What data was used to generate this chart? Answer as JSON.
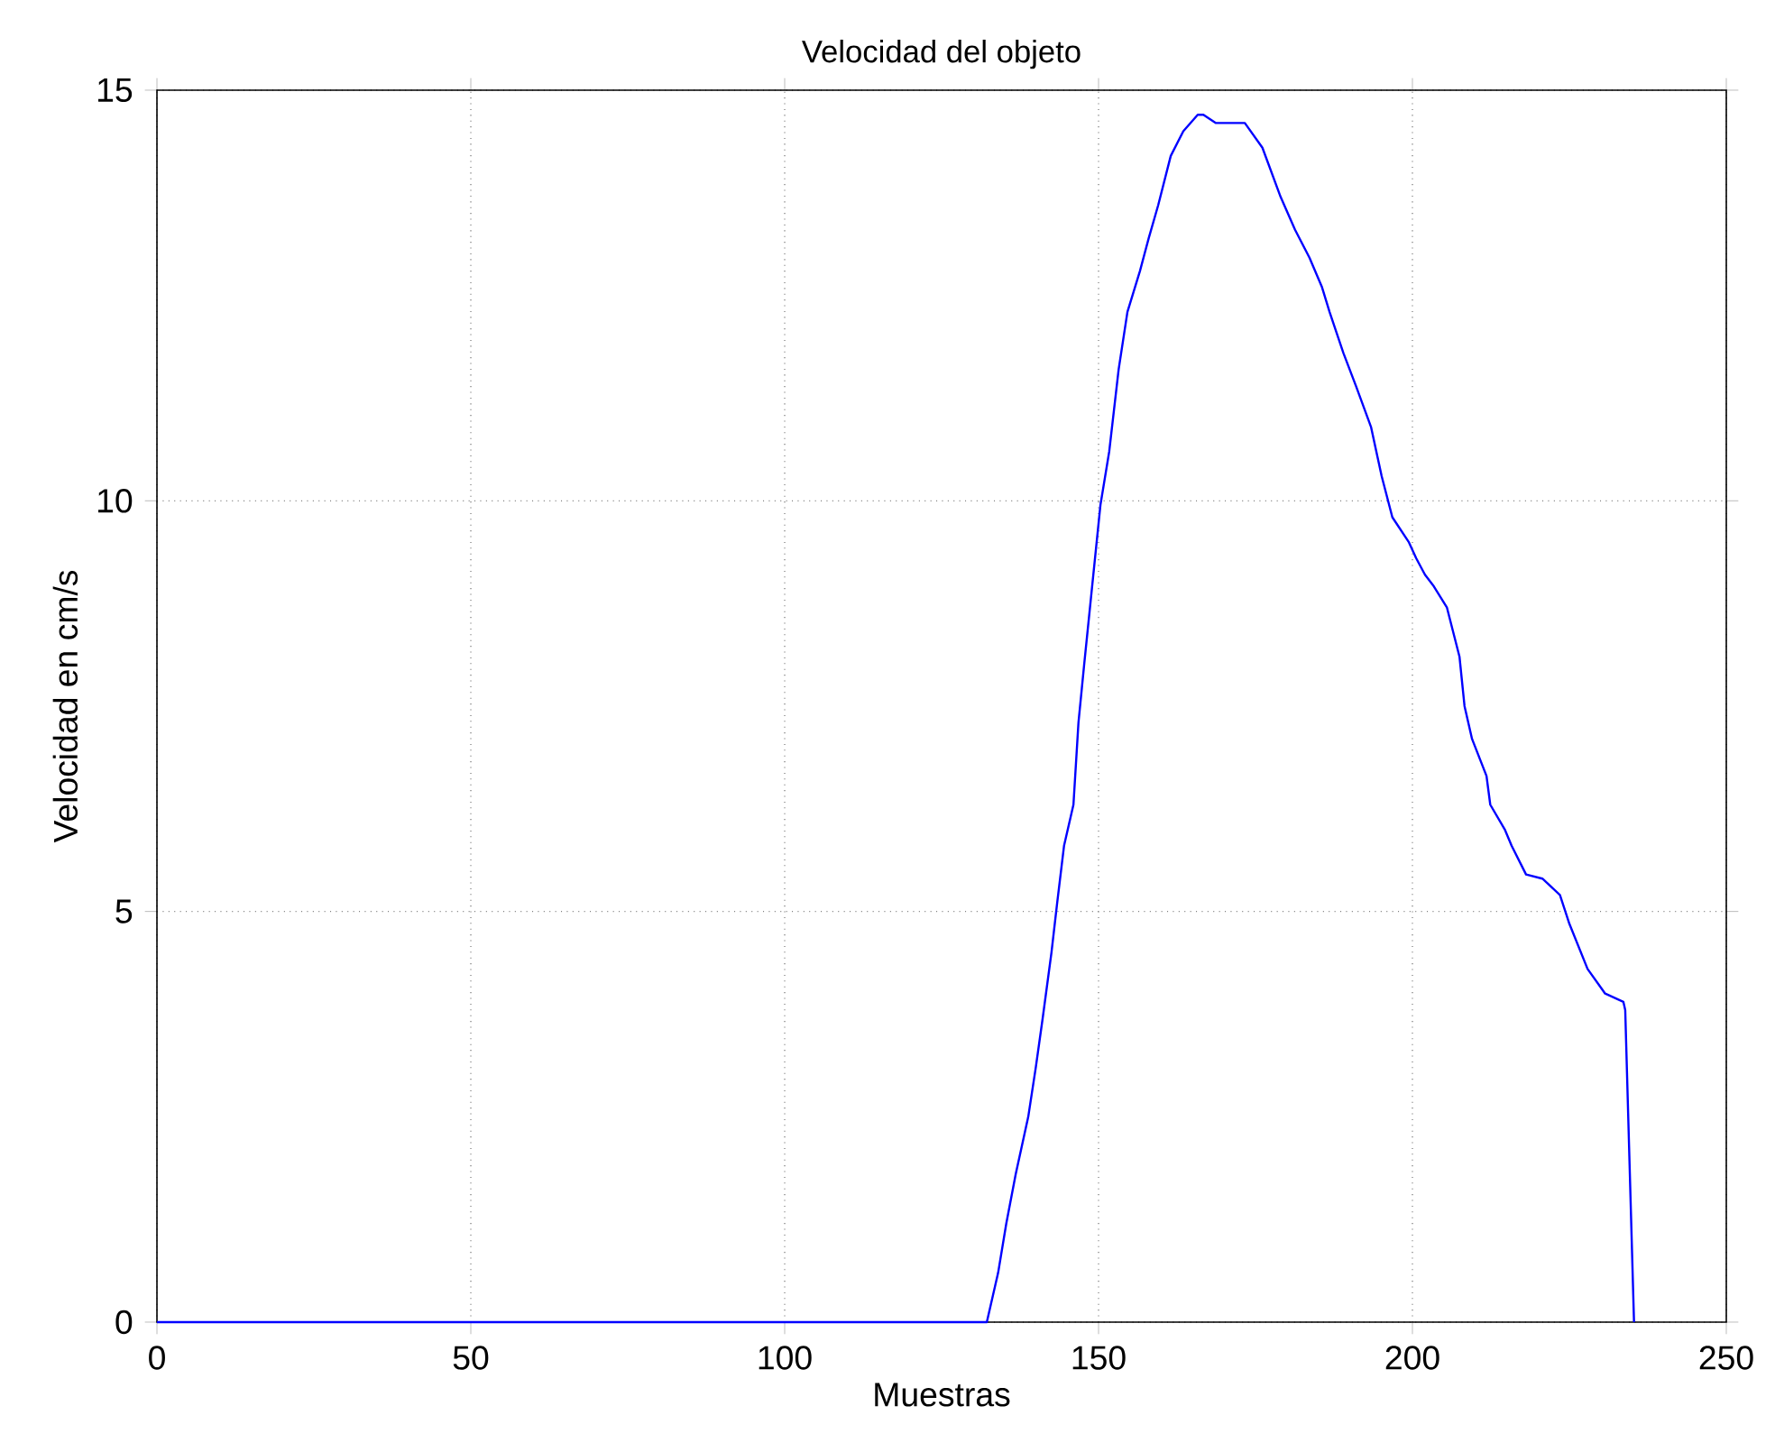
{
  "chart_data": {
    "type": "line",
    "title": "Velocidad del objeto",
    "xlabel": "Muestras",
    "ylabel": "Velocidad en cm/s",
    "xlim": [
      0,
      250
    ],
    "ylim": [
      0,
      15
    ],
    "xticks": [
      0,
      50,
      100,
      150,
      200,
      250
    ],
    "yticks": [
      0,
      5,
      10,
      15
    ],
    "grid": true,
    "series": [
      {
        "color": "#0000ff",
        "x": [
          0,
          132.2,
          134,
          135.3,
          136.8,
          138.8,
          140,
          141.1,
          142.5,
          143.4,
          144.5,
          146,
          146.8,
          147.7,
          148.9,
          150.3,
          151.7,
          153.2,
          154.6,
          156.6,
          158,
          159.5,
          161.5,
          163.5,
          165.8,
          166.7,
          168.7,
          173.3,
          176.1,
          179,
          181.3,
          183.6,
          185.6,
          186.8,
          189,
          191,
          193.4,
          195.1,
          196.8,
          199.4,
          200.6,
          202,
          203.4,
          205.5,
          207.5,
          208.3,
          209.5,
          211.8,
          212.4,
          214.7,
          215.8,
          218.1,
          220.7,
          223.5,
          225,
          227.9,
          230.7,
          233.6,
          233.9,
          235.3
        ],
        "values": [
          0,
          0,
          0.6,
          1.2,
          1.8,
          2.5,
          3.1,
          3.7,
          4.5,
          5.1,
          5.8,
          6.3,
          7.3,
          8.0,
          8.9,
          9.95,
          10.6,
          11.6,
          12.3,
          12.8,
          13.2,
          13.6,
          14.2,
          14.5,
          14.7,
          14.7,
          14.6,
          14.6,
          14.3,
          13.7,
          13.3,
          12.96,
          12.6,
          12.3,
          11.8,
          11.4,
          10.9,
          10.3,
          9.8,
          9.5,
          9.3,
          9.1,
          8.96,
          8.7,
          8.1,
          7.5,
          7.1,
          6.65,
          6.3,
          6.0,
          5.8,
          5.45,
          5.4,
          5.2,
          4.85,
          4.3,
          4.0,
          3.9,
          3.8,
          0
        ]
      }
    ]
  }
}
